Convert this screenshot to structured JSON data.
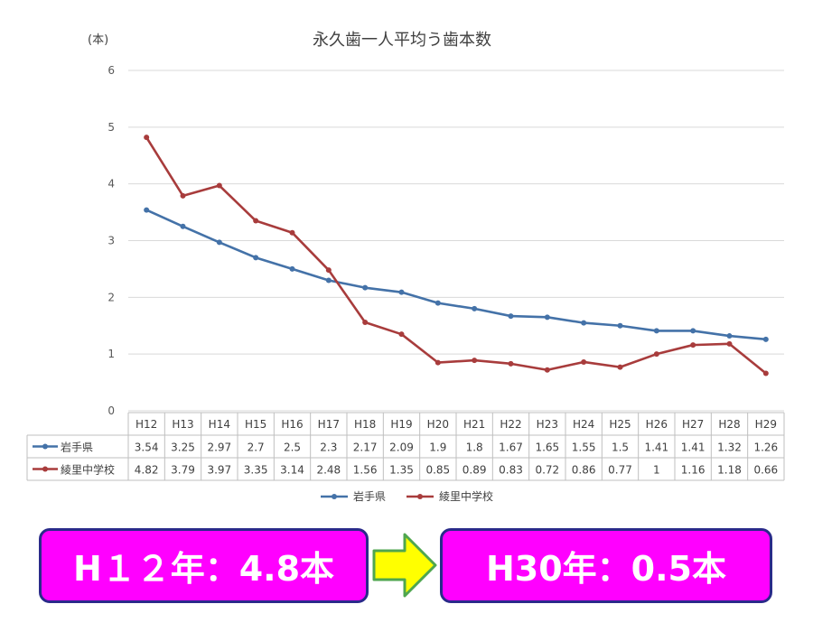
{
  "chart_data": {
    "type": "line",
    "title": "永久歯一人平均う歯本数",
    "unit_label": "(本)",
    "ylim": [
      0,
      6
    ],
    "yticks": [
      "0",
      "1",
      "2",
      "3",
      "4",
      "5",
      "6"
    ],
    "categories": [
      "H12",
      "H13",
      "H14",
      "H15",
      "H16",
      "H17",
      "H18",
      "H19",
      "H20",
      "H21",
      "H22",
      "H23",
      "H24",
      "H25",
      "H26",
      "H27",
      "H28",
      "H29"
    ],
    "series": [
      {
        "name": "岩手県",
        "color": "#4472a8",
        "values": [
          3.54,
          3.25,
          2.97,
          2.7,
          2.5,
          2.3,
          2.17,
          2.09,
          1.9,
          1.8,
          1.67,
          1.65,
          1.55,
          1.5,
          1.41,
          1.41,
          1.32,
          1.26
        ],
        "labels": [
          "3.54",
          "3.25",
          "2.97",
          "2.7",
          "2.5",
          "2.3",
          "2.17",
          "2.09",
          "1.9",
          "1.8",
          "1.67",
          "1.65",
          "1.55",
          "1.5",
          "1.41",
          "1.41",
          "1.32",
          "1.26"
        ]
      },
      {
        "name": "綾里中学校",
        "color": "#a83c3c",
        "values": [
          4.82,
          3.79,
          3.97,
          3.35,
          3.14,
          2.48,
          1.56,
          1.35,
          0.85,
          0.89,
          0.83,
          0.72,
          0.86,
          0.77,
          1,
          1.16,
          1.18,
          0.66
        ],
        "labels": [
          "4.82",
          "3.79",
          "3.97",
          "3.35",
          "3.14",
          "2.48",
          "1.56",
          "1.35",
          "0.85",
          "0.89",
          "0.83",
          "0.72",
          "0.86",
          "0.77",
          "1",
          "1.16",
          "1.18",
          "0.66"
        ]
      }
    ],
    "grid": true,
    "legend": "bottom"
  },
  "callouts": {
    "left": "H１２年：4.8本",
    "right": "H30年：0.5本",
    "fill": "#ff00ff",
    "arrow_color": "#ffff00"
  }
}
